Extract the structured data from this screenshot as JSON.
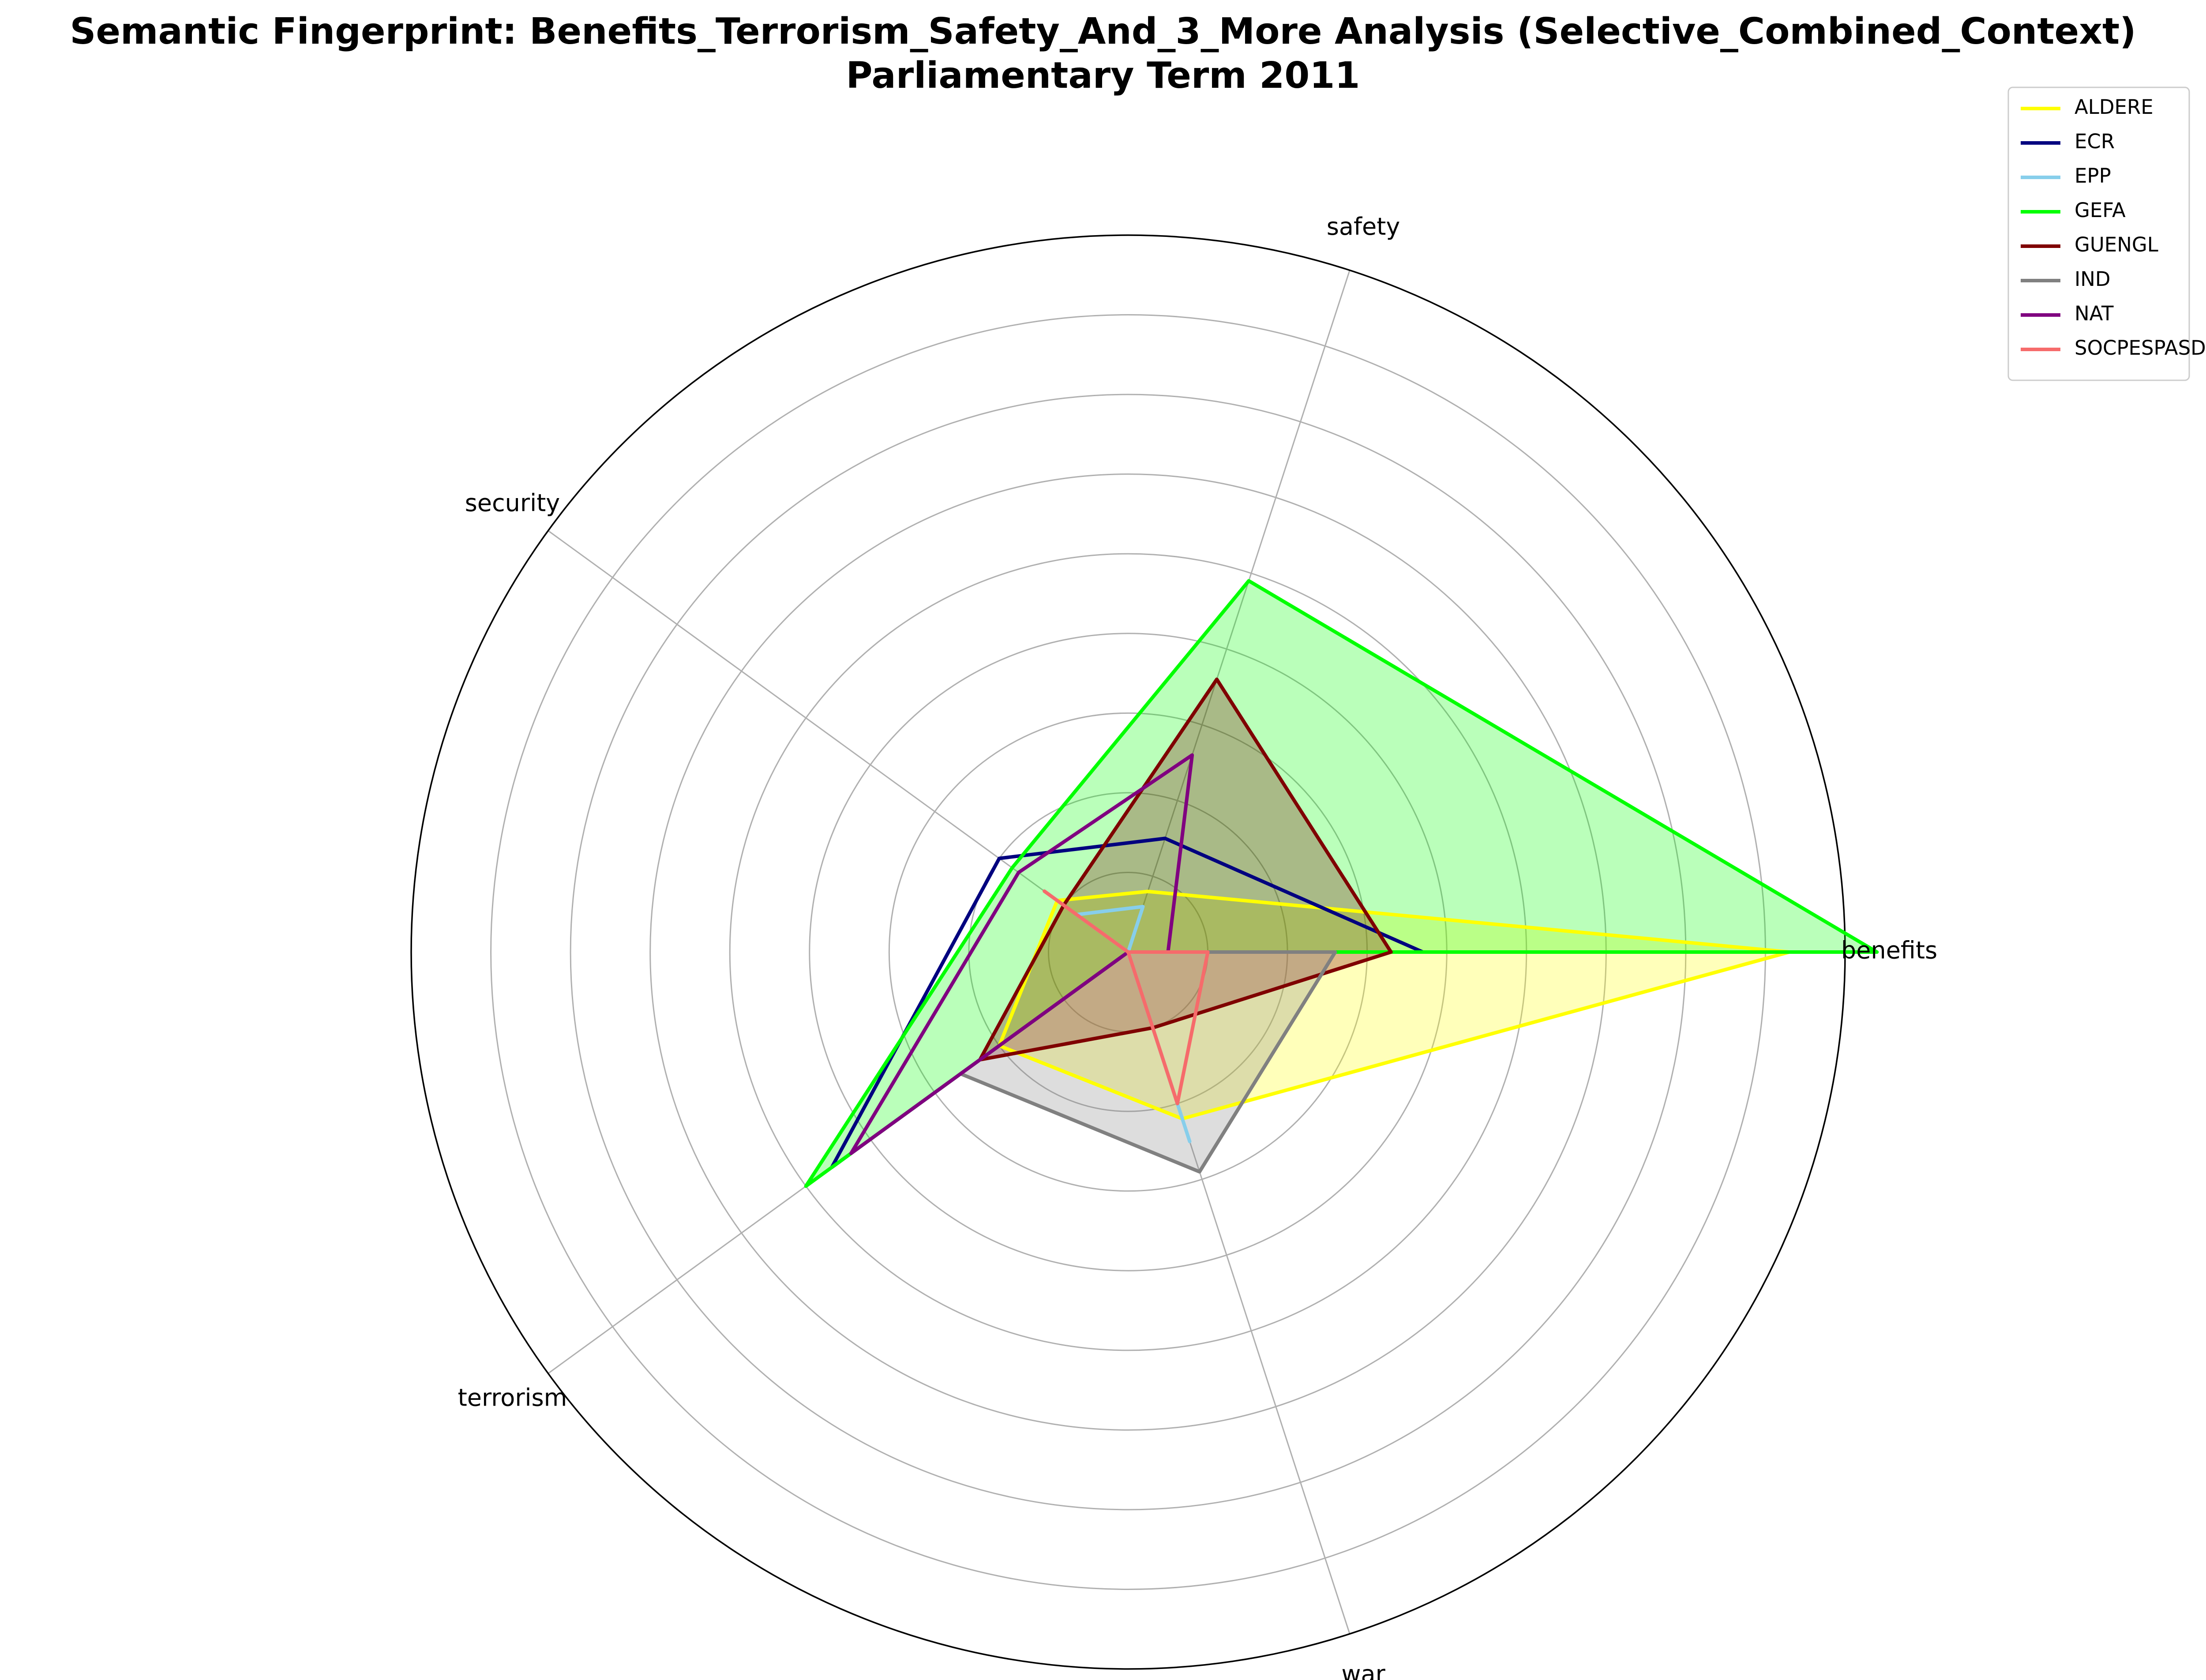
{
  "title_line1": "Semantic Fingerprint: Benefits_Terrorism_Safety_And_3_More Analysis (Selective_Combined_Context)",
  "title_line2": "Parliamentary Term 2011",
  "chart_data": {
    "type": "radar",
    "title": "Semantic Fingerprint: Benefits_Terrorism_Safety_And_3_More Analysis (Selective_Combined_Context) Parliamentary Term 2011",
    "axes": [
      "benefits",
      "safety",
      "security",
      "terrorism",
      "war"
    ],
    "rmax": 9,
    "grid_circles": 9,
    "grid": true,
    "legend_position": "upper-right",
    "series": [
      {
        "name": "ALDERE",
        "color": "#ffff00",
        "fill": true,
        "values": [
          8.3,
          0.8,
          1.1,
          2.0,
          2.2
        ]
      },
      {
        "name": "ECR",
        "color": "#00007f",
        "fill": false,
        "values": [
          3.7,
          1.5,
          2.0,
          4.6,
          0.0
        ]
      },
      {
        "name": "EPP",
        "color": "#87ceeb",
        "fill": false,
        "values": [
          0.0,
          0.6,
          0.8,
          0.0,
          2.5
        ]
      },
      {
        "name": "GEFA",
        "color": "#00ff00",
        "fill": true,
        "values": [
          9.4,
          4.9,
          1.8,
          5.0,
          0.0
        ]
      },
      {
        "name": "GUENGL",
        "color": "#7f0000",
        "fill": true,
        "values": [
          3.3,
          3.6,
          1.0,
          2.3,
          1.0
        ]
      },
      {
        "name": "IND",
        "color": "#808080",
        "fill": true,
        "values": [
          2.6,
          0.0,
          0.0,
          2.6,
          2.9
        ]
      },
      {
        "name": "NAT",
        "color": "#800080",
        "fill": false,
        "values": [
          0.5,
          2.6,
          1.7,
          4.3,
          0.0
        ]
      },
      {
        "name": "SOCPESPASD",
        "color": "#f66b6b",
        "fill": false,
        "values": [
          1.0,
          0.0,
          1.3,
          0.0,
          2.0
        ]
      }
    ]
  }
}
